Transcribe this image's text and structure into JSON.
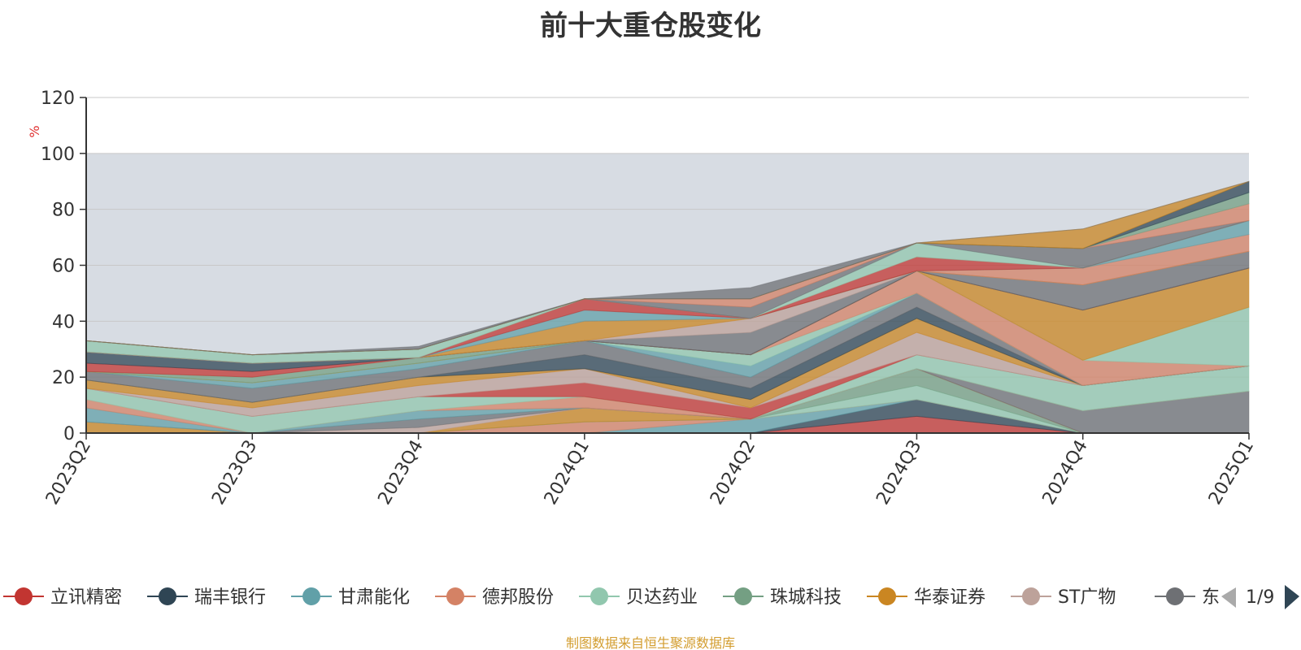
{
  "title": "前十大重仓股变化",
  "source_note": "制图数据来自恒生聚源数据库",
  "legend": {
    "visible_items": [
      {
        "name": "立讯精密",
        "color": "#c23531"
      },
      {
        "name": "瑞丰银行",
        "color": "#2f4554"
      },
      {
        "name": "甘肃能化",
        "color": "#61a0a8"
      },
      {
        "name": "德邦股份",
        "color": "#d48265"
      },
      {
        "name": "贝达药业",
        "color": "#91c7ae"
      },
      {
        "name": "珠城科技",
        "color": "#749f83"
      },
      {
        "name": "华泰证券",
        "color": "#ca8622"
      },
      {
        "name": "ST广物",
        "color": "#bda29a"
      },
      {
        "name": "东",
        "color": "#6e7074"
      }
    ],
    "page_indicator": "1/9"
  },
  "chart_data": {
    "type": "area",
    "title": "前十大重仓股变化",
    "ylabel": "%",
    "xlabel": "",
    "categories": [
      "2023Q2",
      "2023Q3",
      "2023Q4",
      "2024Q1",
      "2024Q2",
      "2024Q3",
      "2024Q4",
      "2025Q1"
    ],
    "ylim": [
      0,
      120
    ],
    "yticks": [
      0,
      20,
      40,
      60,
      80,
      100,
      120
    ],
    "stacked": true,
    "grid": true,
    "legend_position": "bottom",
    "shaded_band": [
      0,
      100
    ],
    "series": [
      {
        "name": "立讯精密",
        "color": "#c23531",
        "values": [
          0,
          0,
          0,
          0,
          0,
          6,
          0,
          0
        ]
      },
      {
        "name": "瑞丰银行",
        "color": "#2f4554",
        "values": [
          0,
          0,
          0,
          0,
          0,
          6,
          0,
          0
        ]
      },
      {
        "name": "甘肃能化",
        "color": "#61a0a8",
        "values": [
          0,
          0,
          0,
          0,
          5,
          0,
          0,
          0
        ]
      },
      {
        "name": "德邦股份",
        "color": "#d48265",
        "values": [
          0,
          0,
          0,
          4,
          0,
          0,
          0,
          0
        ]
      },
      {
        "name": "贝达药业",
        "color": "#91c7ae",
        "values": [
          0,
          0,
          0,
          0,
          0,
          5,
          0,
          0
        ]
      },
      {
        "name": "珠城科技",
        "color": "#749f83",
        "values": [
          0,
          0,
          0,
          0,
          0,
          6,
          0,
          0
        ]
      },
      {
        "name": "华泰证券",
        "color": "#ca8622",
        "values": [
          4,
          0,
          0,
          5,
          0,
          0,
          0,
          0
        ]
      },
      {
        "name": "ST广物",
        "color": "#bda29a",
        "values": [
          0,
          0,
          2,
          0,
          0,
          0,
          0,
          0
        ]
      },
      {
        "name": "东",
        "color": "#6e7074",
        "values": [
          0,
          0,
          3,
          0,
          0,
          0,
          8,
          15
        ]
      },
      {
        "name": "",
        "color": "#61a0a8",
        "values": [
          5,
          0,
          3,
          0,
          0,
          0,
          0,
          0
        ]
      },
      {
        "name": "",
        "color": "#d48265",
        "values": [
          3,
          0,
          0,
          4,
          0,
          0,
          0,
          0
        ]
      },
      {
        "name": "",
        "color": "#91c7ae",
        "values": [
          4,
          6,
          5,
          0,
          0,
          5,
          9,
          9
        ]
      },
      {
        "name": "",
        "color": "#c23531",
        "values": [
          0,
          0,
          0,
          5,
          4,
          0,
          0,
          0
        ]
      },
      {
        "name": "",
        "color": "#bda29a",
        "values": [
          0,
          3,
          4,
          5,
          0,
          8,
          0,
          0
        ]
      },
      {
        "name": "",
        "color": "#ca8622",
        "values": [
          3,
          2,
          3,
          0,
          3,
          5,
          0,
          0
        ]
      },
      {
        "name": "",
        "color": "#2f4554",
        "values": [
          0,
          0,
          0,
          5,
          4,
          4,
          0,
          0
        ]
      },
      {
        "name": "",
        "color": "#6e7074",
        "values": [
          3,
          5,
          3,
          5,
          4,
          5,
          0,
          0
        ]
      },
      {
        "name": "",
        "color": "#61a0a8",
        "values": [
          0,
          2,
          2,
          0,
          4,
          0,
          0,
          0
        ]
      },
      {
        "name": "",
        "color": "#91c7ae",
        "values": [
          0,
          0,
          0,
          0,
          4,
          0,
          0,
          0
        ]
      },
      {
        "name": "",
        "color": "#d48265",
        "values": [
          0,
          0,
          0,
          0,
          0,
          8,
          9,
          0
        ]
      },
      {
        "name": "",
        "color": "#91c7ae",
        "values": [
          0,
          0,
          0,
          0,
          0,
          0,
          0,
          21
        ]
      },
      {
        "name": "",
        "color": "#ca8622",
        "values": [
          0,
          0,
          0,
          0,
          0,
          0,
          18,
          14
        ]
      },
      {
        "name": "",
        "color": "#749f83",
        "values": [
          0,
          2,
          2,
          0,
          0,
          0,
          0,
          0
        ]
      },
      {
        "name": "",
        "color": "#c23531",
        "values": [
          3,
          2,
          0,
          0,
          0,
          0,
          0,
          0
        ]
      },
      {
        "name": "",
        "color": "#2f4554",
        "values": [
          4,
          3,
          0,
          0,
          0,
          0,
          0,
          0
        ]
      },
      {
        "name": "",
        "color": "#6e7074",
        "values": [
          0,
          0,
          0,
          0,
          8,
          0,
          9,
          6
        ]
      },
      {
        "name": "",
        "color": "#bda29a",
        "values": [
          0,
          0,
          0,
          0,
          5,
          0,
          0,
          0
        ]
      },
      {
        "name": "",
        "color": "#ca8622",
        "values": [
          0,
          0,
          0,
          7,
          0,
          0,
          0,
          0
        ]
      },
      {
        "name": "",
        "color": "#d48265",
        "values": [
          0,
          0,
          0,
          0,
          0,
          0,
          6,
          6
        ]
      },
      {
        "name": "",
        "color": "#61a0a8",
        "values": [
          0,
          0,
          0,
          4,
          0,
          0,
          0,
          5
        ]
      },
      {
        "name": "",
        "color": "#c23531",
        "values": [
          0,
          0,
          0,
          4,
          0,
          5,
          0,
          0
        ]
      },
      {
        "name": "",
        "color": "#91c7ae",
        "values": [
          4,
          3,
          3,
          0,
          0,
          5,
          0,
          0
        ]
      },
      {
        "name": "",
        "color": "#6e7074",
        "values": [
          0,
          0,
          0,
          0,
          4,
          0,
          7,
          0
        ]
      },
      {
        "name": "",
        "color": "#d48265",
        "values": [
          0,
          0,
          0,
          0,
          3,
          0,
          0,
          6
        ]
      },
      {
        "name": "",
        "color": "#749f83",
        "values": [
          0,
          0,
          0,
          0,
          0,
          0,
          0,
          4
        ]
      },
      {
        "name": "",
        "color": "#2f4554",
        "values": [
          0,
          0,
          0,
          0,
          0,
          0,
          0,
          4
        ]
      },
      {
        "name": "",
        "color": "#ca8622",
        "values": [
          0,
          0,
          0,
          0,
          0,
          0,
          7,
          0
        ]
      },
      {
        "name": "",
        "color": "#6e7074",
        "values": [
          0,
          0,
          1,
          0,
          4,
          0,
          0,
          0
        ]
      }
    ]
  }
}
